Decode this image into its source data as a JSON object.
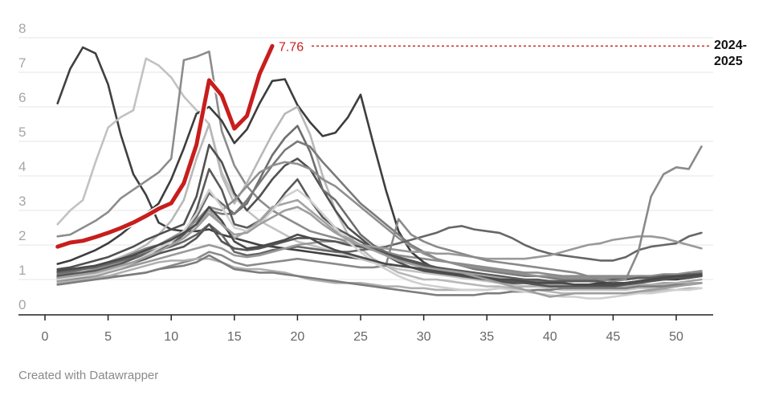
{
  "chart_data": {
    "type": "line",
    "title": "",
    "xlabel": "",
    "ylabel": "",
    "xlim": [
      -2,
      54
    ],
    "ylim": [
      0,
      8
    ],
    "x_ticks": [
      0,
      5,
      10,
      15,
      20,
      25,
      30,
      35,
      40,
      45,
      50
    ],
    "y_ticks": [
      0,
      1,
      2,
      3,
      4,
      5,
      6,
      7,
      8
    ],
    "grid": true,
    "legend": "none",
    "highlight": {
      "name": "2024-2025",
      "label": "2024-\n2025",
      "color": "#c71e1d",
      "end_value_label": "7.76",
      "x": [
        1,
        2,
        3,
        4,
        5,
        6,
        7,
        8,
        9,
        10,
        11,
        12,
        13,
        14,
        15,
        16,
        17,
        18
      ],
      "values": [
        1.95,
        2.07,
        2.12,
        2.23,
        2.35,
        2.49,
        2.65,
        2.84,
        3.05,
        3.21,
        3.79,
        4.9,
        6.77,
        6.33,
        5.37,
        5.74,
        6.95,
        7.76
      ]
    },
    "series": [
      {
        "name": "season-a",
        "color": "#404040",
        "values": [
          6.1,
          7.1,
          7.72,
          7.55,
          6.65,
          5.2,
          4.05,
          3.45,
          2.65,
          2.45,
          2.4,
          2.4,
          2.45,
          2.3,
          2.2,
          2.1,
          2.0,
          1.95,
          1.9,
          1.85,
          1.8,
          1.75,
          1.7,
          1.65,
          1.6,
          1.5,
          1.45,
          1.4,
          1.35,
          1.3,
          1.25,
          1.2,
          1.15,
          1.1,
          1.05,
          1.0,
          0.95,
          0.9,
          0.9,
          0.85,
          0.85,
          0.85,
          0.85,
          0.9,
          0.9,
          0.9,
          0.95,
          1.0,
          1.0,
          1.05,
          1.05,
          1.1
        ]
      },
      {
        "name": "season-b",
        "color": "#c2c2c2",
        "values": [
          2.6,
          3.0,
          3.3,
          4.4,
          5.4,
          5.7,
          5.9,
          7.4,
          7.2,
          6.85,
          6.3,
          5.9,
          5.5,
          4.1,
          3.4,
          3.0,
          2.7,
          2.5,
          2.3,
          2.1,
          2.0,
          1.9,
          1.8,
          1.7,
          1.6,
          1.5,
          1.4,
          1.3,
          1.25,
          1.2,
          1.15,
          1.1,
          1.05,
          1.0,
          0.95,
          0.9,
          0.85,
          0.8,
          0.8,
          0.75,
          0.7,
          0.7,
          0.7,
          0.7,
          0.7,
          0.7,
          0.75,
          0.75,
          0.8,
          0.8,
          0.85,
          0.9
        ]
      },
      {
        "name": "season-c",
        "color": "#8c8c8c",
        "values": [
          2.25,
          2.3,
          2.5,
          2.7,
          2.95,
          3.35,
          3.6,
          3.85,
          4.1,
          4.5,
          7.35,
          7.45,
          7.6,
          5.3,
          4.3,
          3.7,
          3.3,
          3.0,
          2.8,
          2.6,
          2.4,
          2.3,
          2.2,
          2.1,
          2.0,
          1.9,
          1.8,
          1.7,
          1.65,
          1.6,
          1.55,
          1.5,
          1.45,
          1.4,
          1.35,
          1.3,
          1.25,
          1.2,
          1.2,
          1.15,
          1.1,
          1.1,
          1.1,
          1.1,
          1.1,
          1.1,
          1.1,
          1.1,
          1.15,
          1.15,
          1.2,
          1.2
        ]
      },
      {
        "name": "season-d",
        "color": "#3d3d3d",
        "values": [
          1.45,
          1.55,
          1.7,
          1.85,
          2.05,
          2.3,
          2.6,
          2.9,
          3.2,
          3.9,
          4.8,
          5.8,
          6.0,
          5.6,
          4.95,
          5.35,
          6.1,
          6.75,
          6.8,
          6.05,
          5.55,
          5.15,
          5.25,
          5.7,
          6.35,
          4.95,
          3.6,
          2.4,
          1.8,
          1.5,
          1.3,
          1.2,
          1.1,
          1.05,
          1.0,
          0.95,
          0.9,
          0.9,
          0.9,
          0.85,
          0.85,
          0.85,
          0.85,
          0.85,
          0.85,
          0.9,
          0.9,
          0.95,
          1.0,
          1.0,
          1.05,
          1.1
        ]
      },
      {
        "name": "season-e",
        "color": "#b8b8b8",
        "values": [
          1.1,
          1.15,
          1.25,
          1.35,
          1.5,
          1.65,
          1.8,
          2.0,
          2.3,
          2.7,
          3.3,
          4.5,
          5.5,
          4.0,
          3.2,
          3.8,
          4.5,
          5.2,
          5.8,
          6.0,
          5.2,
          4.0,
          3.0,
          2.3,
          1.9,
          1.6,
          1.4,
          1.2,
          1.1,
          1.0,
          1.0,
          0.95,
          0.9,
          0.85,
          0.8,
          0.8,
          0.75,
          0.7,
          0.7,
          0.65,
          0.6,
          0.6,
          0.6,
          0.6,
          0.6,
          0.6,
          0.65,
          0.65,
          0.7,
          0.7,
          0.75,
          0.75
        ]
      },
      {
        "name": "season-f",
        "color": "#505050",
        "values": [
          1.3,
          1.35,
          1.45,
          1.55,
          1.65,
          1.8,
          1.95,
          2.15,
          2.3,
          2.45,
          2.6,
          3.4,
          4.9,
          4.4,
          3.5,
          3.0,
          3.4,
          3.9,
          4.3,
          4.5,
          4.2,
          3.6,
          3.0,
          2.5,
          2.2,
          1.9,
          1.7,
          1.5,
          1.35,
          1.25,
          1.2,
          1.15,
          1.1,
          1.05,
          1.0,
          0.95,
          0.9,
          0.9,
          0.85,
          0.85,
          0.85,
          0.85,
          0.85,
          0.85,
          0.9,
          0.9,
          0.95,
          1.0,
          1.0,
          1.05,
          1.1,
          1.1
        ]
      },
      {
        "name": "season-g",
        "color": "#6e6e6e",
        "values": [
          1.2,
          1.25,
          1.3,
          1.4,
          1.5,
          1.6,
          1.7,
          1.85,
          2.0,
          2.2,
          2.4,
          2.8,
          3.5,
          3.2,
          2.9,
          3.2,
          3.9,
          4.6,
          5.1,
          5.45,
          4.7,
          3.6,
          3.3,
          2.8,
          2.3,
          2.0,
          1.8,
          1.6,
          1.45,
          1.35,
          1.3,
          1.25,
          1.2,
          1.15,
          1.1,
          1.05,
          1.0,
          1.0,
          0.95,
          0.95,
          0.95,
          0.95,
          0.95,
          0.95,
          1.0,
          1.0,
          1.05,
          1.05,
          1.1,
          1.1,
          1.15,
          1.2
        ]
      },
      {
        "name": "season-h",
        "color": "#7a7a7a",
        "values": [
          1.15,
          1.2,
          1.3,
          1.4,
          1.5,
          1.6,
          1.75,
          1.9,
          2.0,
          2.1,
          2.3,
          2.6,
          3.0,
          2.9,
          2.9,
          3.3,
          3.8,
          4.3,
          4.75,
          5.0,
          4.85,
          4.4,
          4.0,
          3.6,
          3.2,
          2.9,
          2.6,
          2.3,
          2.0,
          1.8,
          1.6,
          1.5,
          1.4,
          1.3,
          1.25,
          1.2,
          1.15,
          1.1,
          1.1,
          1.05,
          1.0,
          1.0,
          1.0,
          1.0,
          1.0,
          1.0,
          1.05,
          1.05,
          1.1,
          1.1,
          1.15,
          1.2
        ]
      },
      {
        "name": "season-i",
        "color": "#8f8f8f",
        "values": [
          1.1,
          1.15,
          1.2,
          1.3,
          1.4,
          1.5,
          1.6,
          1.8,
          2.0,
          2.2,
          2.4,
          2.7,
          3.1,
          3.0,
          3.3,
          3.7,
          4.1,
          4.3,
          4.4,
          4.35,
          4.2,
          3.9,
          3.7,
          3.4,
          3.1,
          2.8,
          2.5,
          2.2,
          1.95,
          1.75,
          1.6,
          1.5,
          1.4,
          1.35,
          1.3,
          1.25,
          1.2,
          1.15,
          1.1,
          1.1,
          1.05,
          1.05,
          1.05,
          1.05,
          1.05,
          1.05,
          1.1,
          1.1,
          1.15,
          1.15,
          1.2,
          1.25
        ]
      },
      {
        "name": "season-j",
        "color": "#5a5a5a",
        "values": [
          1.05,
          1.1,
          1.15,
          1.25,
          1.35,
          1.45,
          1.6,
          1.75,
          1.9,
          2.0,
          2.3,
          3.0,
          4.2,
          3.6,
          2.6,
          2.5,
          2.7,
          3.0,
          3.5,
          3.9,
          3.3,
          2.8,
          2.5,
          2.3,
          2.1,
          1.9,
          1.75,
          1.6,
          1.5,
          1.4,
          1.35,
          1.3,
          1.25,
          1.2,
          1.15,
          1.1,
          1.05,
          1.0,
          1.0,
          0.95,
          0.95,
          0.95,
          0.95,
          0.95,
          1.0,
          1.0,
          1.05,
          1.05,
          1.1,
          1.1,
          1.15,
          1.15
        ]
      },
      {
        "name": "season-k",
        "color": "#a3a3a3",
        "values": [
          1.0,
          1.05,
          1.1,
          1.15,
          1.25,
          1.35,
          1.45,
          1.6,
          1.8,
          2.0,
          2.2,
          2.5,
          3.0,
          2.6,
          2.2,
          2.4,
          2.7,
          3.1,
          3.2,
          3.3,
          3.0,
          2.7,
          2.4,
          2.2,
          2.0,
          1.85,
          1.7,
          1.55,
          1.45,
          1.35,
          1.3,
          1.25,
          1.2,
          1.15,
          1.1,
          1.05,
          1.0,
          0.95,
          0.9,
          0.85,
          0.85,
          0.8,
          0.8,
          0.8,
          0.8,
          0.8,
          0.85,
          0.85,
          0.9,
          0.9,
          0.95,
          1.0
        ]
      },
      {
        "name": "season-l",
        "color": "#666666",
        "values": [
          1.2,
          1.25,
          1.3,
          1.35,
          1.45,
          1.55,
          1.65,
          1.75,
          1.85,
          1.95,
          2.1,
          2.3,
          2.6,
          2.3,
          1.8,
          1.7,
          1.75,
          1.85,
          1.9,
          1.95,
          1.9,
          1.85,
          1.8,
          1.8,
          1.85,
          1.9,
          1.95,
          2.05,
          2.15,
          2.25,
          2.35,
          2.5,
          2.55,
          2.45,
          2.4,
          2.35,
          2.2,
          2.0,
          1.85,
          1.75,
          1.7,
          1.65,
          1.6,
          1.55,
          1.55,
          1.65,
          1.85,
          1.95,
          2.0,
          2.05,
          2.25,
          2.35
        ]
      },
      {
        "name": "season-m",
        "color": "#999999",
        "values": [
          0.95,
          1.0,
          1.05,
          1.1,
          1.2,
          1.3,
          1.4,
          1.5,
          1.6,
          1.7,
          1.8,
          1.9,
          2.0,
          1.9,
          1.7,
          1.65,
          1.7,
          1.8,
          1.9,
          2.0,
          2.05,
          2.1,
          2.1,
          2.05,
          2.0,
          1.95,
          1.9,
          1.85,
          1.8,
          1.8,
          1.75,
          1.75,
          1.7,
          1.65,
          1.6,
          1.6,
          1.6,
          1.6,
          1.65,
          1.7,
          1.8,
          1.9,
          2.0,
          2.05,
          2.15,
          2.2,
          2.25,
          2.25,
          2.2,
          2.1,
          2.0,
          1.9
        ]
      },
      {
        "name": "season-n",
        "color": "#8a8a8a",
        "values": [
          1.0,
          1.0,
          1.05,
          1.05,
          1.1,
          1.1,
          1.15,
          1.2,
          1.3,
          1.4,
          1.5,
          1.6,
          1.8,
          1.7,
          1.5,
          1.4,
          1.45,
          1.5,
          1.55,
          1.6,
          1.55,
          1.5,
          1.45,
          1.4,
          1.35,
          1.35,
          1.4,
          2.75,
          2.3,
          2.1,
          1.95,
          1.85,
          1.75,
          1.65,
          1.55,
          1.5,
          1.45,
          1.4,
          1.35,
          1.3,
          1.25,
          1.2,
          1.1,
          1.0,
          0.95,
          1.0,
          1.8,
          3.4,
          4.05,
          4.25,
          4.2,
          4.85
        ]
      },
      {
        "name": "season-o",
        "color": "#b0b0b0",
        "values": [
          0.9,
          0.95,
          1.0,
          1.05,
          1.1,
          1.2,
          1.3,
          1.4,
          1.5,
          1.55,
          1.55,
          1.6,
          1.6,
          1.5,
          1.35,
          1.3,
          1.3,
          1.25,
          1.2,
          1.1,
          1.0,
          0.95,
          0.9,
          0.9,
          0.9,
          0.85,
          0.8,
          0.8,
          0.75,
          0.75,
          0.7,
          0.7,
          0.7,
          0.7,
          0.7,
          0.75,
          0.75,
          0.8,
          0.8,
          0.8,
          0.8,
          0.8,
          0.8,
          0.8,
          0.8,
          0.8,
          0.85,
          0.85,
          0.85,
          0.9,
          0.9,
          0.9
        ]
      },
      {
        "name": "season-p",
        "color": "#555555",
        "values": [
          1.1,
          1.15,
          1.2,
          1.25,
          1.3,
          1.4,
          1.5,
          1.6,
          1.75,
          1.85,
          1.95,
          2.2,
          2.6,
          2.1,
          1.9,
          1.85,
          1.9,
          2.0,
          2.1,
          2.2,
          2.2,
          2.15,
          2.1,
          2.0,
          1.95,
          1.85,
          1.75,
          1.65,
          1.55,
          1.45,
          1.35,
          1.25,
          1.15,
          1.1,
          1.05,
          1.0,
          0.95,
          0.9,
          0.85,
          0.8,
          0.8,
          0.8,
          0.8,
          0.8,
          0.8,
          0.85,
          0.9,
          0.95,
          1.0,
          1.05,
          1.05,
          1.1
        ]
      },
      {
        "name": "season-q",
        "color": "#7d7d7d",
        "values": [
          0.85,
          0.9,
          0.95,
          1.0,
          1.05,
          1.1,
          1.15,
          1.2,
          1.3,
          1.35,
          1.4,
          1.5,
          1.7,
          1.5,
          1.3,
          1.25,
          1.2,
          1.2,
          1.15,
          1.1,
          1.05,
          1.0,
          0.95,
          0.9,
          0.85,
          0.8,
          0.75,
          0.7,
          0.65,
          0.6,
          0.55,
          0.55,
          0.55,
          0.55,
          0.6,
          0.6,
          0.65,
          0.65,
          0.7,
          0.7,
          0.75,
          0.75,
          0.75,
          0.75,
          0.75,
          0.75,
          0.8,
          0.8,
          0.8,
          0.85,
          0.85,
          0.9
        ]
      },
      {
        "name": "season-r",
        "color": "#d0d0d0",
        "values": [
          1.0,
          1.05,
          1.1,
          1.15,
          1.25,
          1.35,
          1.5,
          1.7,
          1.9,
          2.1,
          2.4,
          2.9,
          3.6,
          3.1,
          2.5,
          2.4,
          2.6,
          3.0,
          3.4,
          3.6,
          3.3,
          2.9,
          2.5,
          2.1,
          1.8,
          1.5,
          1.3,
          1.1,
          0.95,
          0.85,
          0.8,
          0.75,
          0.7,
          0.7,
          0.7,
          0.75,
          0.7,
          0.65,
          0.6,
          0.55,
          0.5,
          0.5,
          0.45,
          0.45,
          0.5,
          0.55,
          0.6,
          0.6,
          0.65,
          0.7,
          0.7,
          0.75
        ]
      },
      {
        "name": "season-s",
        "color": "#4a4a4a",
        "values": [
          1.25,
          1.3,
          1.35,
          1.4,
          1.5,
          1.6,
          1.7,
          1.85,
          2.0,
          2.15,
          2.35,
          2.6,
          3.1,
          2.7,
          2.1,
          1.9,
          1.95,
          2.05,
          2.15,
          2.3,
          2.2,
          2.0,
          1.85,
          1.75,
          1.65,
          1.55,
          1.45,
          1.4,
          1.35,
          1.3,
          1.25,
          1.2,
          1.15,
          1.1,
          1.05,
          1.0,
          1.0,
          0.95,
          0.9,
          0.9,
          0.9,
          0.85,
          0.85,
          0.85,
          0.85,
          0.9,
          0.95,
          1.0,
          1.05,
          1.1,
          1.1,
          1.15
        ]
      },
      {
        "name": "season-t",
        "color": "#9e9e9e",
        "values": [
          1.05,
          1.1,
          1.15,
          1.2,
          1.3,
          1.4,
          1.5,
          1.65,
          1.8,
          2.0,
          2.2,
          2.5,
          2.9,
          2.6,
          2.3,
          2.35,
          2.6,
          2.8,
          3.0,
          3.1,
          2.9,
          2.6,
          2.35,
          2.15,
          2.0,
          1.85,
          1.7,
          1.55,
          1.45,
          1.35,
          1.3,
          1.25,
          1.2,
          1.1,
          1.0,
          0.9,
          0.8,
          0.7,
          0.6,
          0.5,
          0.55,
          0.6,
          0.6,
          0.6,
          0.6,
          0.6,
          0.65,
          0.7,
          0.75,
          0.8,
          0.85,
          0.9
        ]
      }
    ]
  },
  "annotation": {
    "value_label": "7.76",
    "season_label": "2024-\n2025"
  },
  "footer": {
    "credit": "Created with Datawrapper"
  }
}
